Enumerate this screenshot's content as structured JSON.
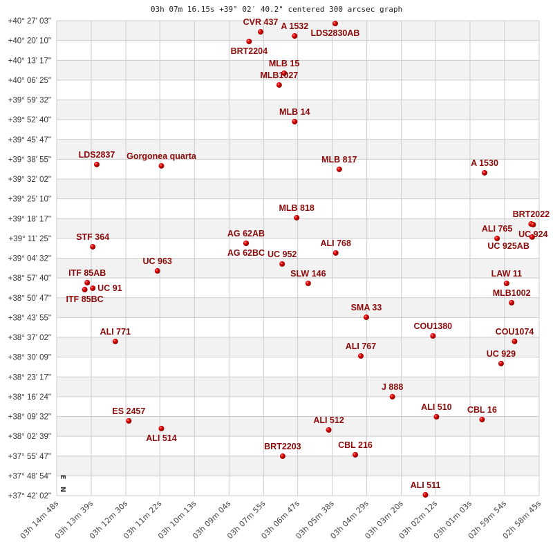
{
  "chart_data": {
    "type": "scatter",
    "title": "03h 07m 16.15s +39° 02′ 40.2\" centered 300 arcsec graph",
    "xlabel": "",
    "ylabel": "",
    "x_axis": "right ascension",
    "y_axis": "declination",
    "x_reversed": true,
    "xlim": [
      "03h 14m 48s",
      "02h 58m 45s"
    ],
    "ylim": [
      "+37° 42' 02\"",
      "+40° 27' 03\""
    ],
    "grid": true,
    "alternating_row_shading": true,
    "x_ticks": [
      "03h 14m 48s",
      "03h 13m 39s",
      "03h 12m 30s",
      "03h 11m 22s",
      "03h 10m 13s",
      "03h 09m 04s",
      "03h 07m 55s",
      "03h 06m 47s",
      "03h 05m 38s",
      "03h 04m 29s",
      "03h 03m 20s",
      "03h 02m 12s",
      "03h 01m 03s",
      "02h 59m 54s",
      "02h 58m 45s"
    ],
    "y_ticks": [
      "+40° 27' 03\"",
      "+40° 20' 10\"",
      "+40° 13' 17\"",
      "+40° 06' 25\"",
      "+39° 59' 32\"",
      "+39° 52' 40\"",
      "+39° 45' 47\"",
      "+39° 38' 55\"",
      "+39° 32' 02\"",
      "+39° 25' 10\"",
      "+39° 18' 17\"",
      "+39° 11' 25\"",
      "+39° 04' 32\"",
      "+38° 57' 40\"",
      "+38° 50' 47\"",
      "+38° 43' 55\"",
      "+38° 37' 02\"",
      "+38° 30' 09\"",
      "+38° 23' 17\"",
      "+38° 16' 24\"",
      "+38° 09' 32\"",
      "+38° 02' 39\"",
      "+37° 55' 47\"",
      "+37° 48' 54\"",
      "+37° 42' 02\""
    ],
    "compass": {
      "north": "N",
      "east": "E"
    },
    "colors": {
      "marker": "#d40000",
      "label": "#8b0a0a",
      "grid": "#cccccc",
      "band": "#f2f2f2"
    },
    "points": [
      {
        "name": "LDS2830AB",
        "ra": "03h 05m 32s",
        "dec": "+40° 26' 05\""
      },
      {
        "name": "CVR 437",
        "ra": "03h 08m 01s",
        "dec": "+40° 23' 12\""
      },
      {
        "name": "A  1532",
        "ra": "03h 06m 53s",
        "dec": "+40° 21' 46\""
      },
      {
        "name": "BRT2204",
        "ra": "03h 08m 24s",
        "dec": "+40° 19' 51\""
      },
      {
        "name": "MLB  15",
        "ra": "03h 07m 14s",
        "dec": "+40° 08' 48\""
      },
      {
        "name": "MLB1027",
        "ra": "03h 07m 24s",
        "dec": "+40° 04' 43\""
      },
      {
        "name": "MLB  14",
        "ra": "03h 06m 53s",
        "dec": "+39° 51' 59\""
      },
      {
        "name": "LDS2837",
        "ra": "03h 13m 28s",
        "dec": "+39° 37' 06\""
      },
      {
        "name": "Gorgonea quarta",
        "ra": "03h 11m 19s",
        "dec": "+39° 36' 37\""
      },
      {
        "name": "MLB 817",
        "ra": "03h 05m 24s",
        "dec": "+39° 35' 25\""
      },
      {
        "name": "A  1530",
        "ra": "03h 00m 34s",
        "dec": "+39° 34' 13\""
      },
      {
        "name": "MLB 818",
        "ra": "03h 06m 49s",
        "dec": "+39° 18' 36\""
      },
      {
        "name": "AG  62AB",
        "ra": "03h 08m 30s",
        "dec": "+39° 09' 43\""
      },
      {
        "name": "AG  62BC",
        "ra": "03h 08m 30s",
        "dec": "+39° 09' 43\""
      },
      {
        "name": "STF 364",
        "ra": "03h 13m 36s",
        "dec": "+39° 08' 31\""
      },
      {
        "name": "ALI 768",
        "ra": "03h 05m 31s",
        "dec": "+39° 06' 21\""
      },
      {
        "name": "UC  952",
        "ra": "03h 07m 18s",
        "dec": "+39° 02' 31\""
      },
      {
        "name": "UC  963",
        "ra": "03h 11m 27s",
        "dec": "+39° 00' 07\""
      },
      {
        "name": "ITF  85AB",
        "ra": "03h 13m 47s",
        "dec": "+38° 56' 02\""
      },
      {
        "name": "ITF  85BC",
        "ra": "03h 13m 52s",
        "dec": "+38° 53' 38\""
      },
      {
        "name": "UC  91",
        "ra": "03h 13m 36s",
        "dec": "+38° 54' 06\""
      },
      {
        "name": "SLW 146",
        "ra": "03h 06m 26s",
        "dec": "+38° 55' 47\""
      },
      {
        "name": "ALI 765",
        "ra": "03h 00m 09s",
        "dec": "+39° 11' 24\""
      },
      {
        "name": "BRT2022",
        "ra": "02h 59m 01s",
        "dec": "+39° 16' 26\""
      },
      {
        "name": "UC  924",
        "ra": "02h 58m 57s",
        "dec": "+39° 16' 12\""
      },
      {
        "name": "UC  925AB",
        "ra": "02h 58m 59s",
        "dec": "+39° 11' 53\""
      },
      {
        "name": "LAW  11",
        "ra": "02h 59m 50s",
        "dec": "+38° 55' 47\""
      },
      {
        "name": "MLB1002",
        "ra": "02h 59m 40s",
        "dec": "+38° 49' 04\""
      },
      {
        "name": "SMA  33",
        "ra": "03h 04m 30s",
        "dec": "+38° 44' 01\""
      },
      {
        "name": "COU1380",
        "ra": "03h 02m 17s",
        "dec": "+38° 37' 32\""
      },
      {
        "name": "ALI 771",
        "ra": "03h 12m 51s",
        "dec": "+38° 35' 37\""
      },
      {
        "name": "COU1074",
        "ra": "02h 59m 34s",
        "dec": "+38° 35' 37\""
      },
      {
        "name": "ALI 767",
        "ra": "03h 04m 41s",
        "dec": "+38° 30' 34\""
      },
      {
        "name": "UC  929",
        "ra": "03h 00m 01s",
        "dec": "+38° 27' 56\""
      },
      {
        "name": "J   888",
        "ra": "03h 03m 38s",
        "dec": "+38° 16' 24\""
      },
      {
        "name": "ES 2457",
        "ra": "03h 12m 24s",
        "dec": "+38° 08' 00\""
      },
      {
        "name": "ALI 510",
        "ra": "03h 02m 10s",
        "dec": "+38° 09' 26\""
      },
      {
        "name": "CBL  16",
        "ra": "03h 00m 39s",
        "dec": "+38° 08' 28\""
      },
      {
        "name": "ALI 514",
        "ra": "03h 11m 19s",
        "dec": "+38° 05' 21\""
      },
      {
        "name": "ALI 512",
        "ra": "03h 05m 45s",
        "dec": "+38° 04' 52\""
      },
      {
        "name": "BRT2203",
        "ra": "03h 07m 17s",
        "dec": "+37° 55' 45\""
      },
      {
        "name": "CBL 216",
        "ra": "03h 04m 52s",
        "dec": "+37° 56' 14\""
      },
      {
        "name": "ALI 511",
        "ra": "03h 02m 32s",
        "dec": "+37° 42' 18\""
      }
    ]
  }
}
